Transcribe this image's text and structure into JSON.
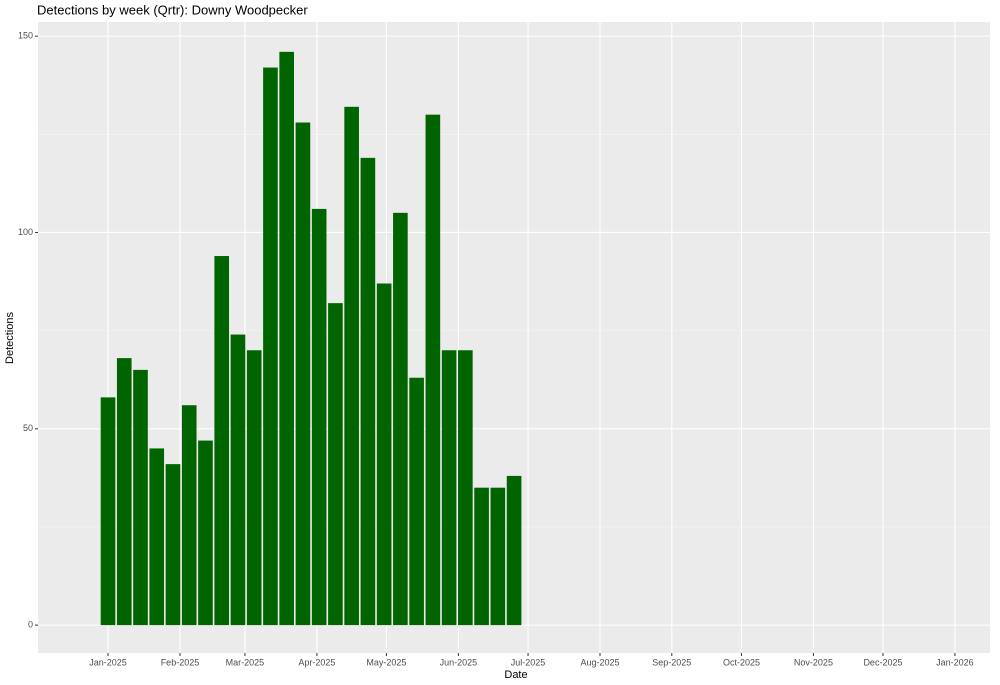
{
  "chart_data": {
    "type": "bar",
    "title": "Detections by week (Qrtr): Downy Woodpecker",
    "x_label": "Date",
    "y_label": "Detections",
    "x": [
      0,
      1,
      2,
      3,
      4,
      5,
      6,
      7,
      8,
      9,
      10,
      11,
      12,
      13,
      14,
      15,
      16,
      17,
      18,
      19,
      20,
      21,
      22,
      23,
      24,
      25
    ],
    "values": [
      58,
      68,
      65,
      45,
      41,
      56,
      47,
      94,
      74,
      70,
      142,
      146,
      128,
      106,
      82,
      132,
      119,
      87,
      105,
      63,
      130,
      70,
      70,
      35,
      35,
      38
    ],
    "color": "#006400",
    "xlim": [
      -4.31,
      54.3
    ],
    "xticks": [
      {
        "value": 0,
        "label": "Jan-2025"
      },
      {
        "value": 4.43,
        "label": "Feb-2025"
      },
      {
        "value": 8.43,
        "label": "Mar-2025"
      },
      {
        "value": 12.86,
        "label": "Apr-2025"
      },
      {
        "value": 17.14,
        "label": "May-2025"
      },
      {
        "value": 21.57,
        "label": "Jun-2025"
      },
      {
        "value": 25.86,
        "label": "Jul-2025"
      },
      {
        "value": 30.29,
        "label": "Aug-2025"
      },
      {
        "value": 34.71,
        "label": "Sep-2025"
      },
      {
        "value": 39,
        "label": "Oct-2025"
      },
      {
        "value": 43.43,
        "label": "Nov-2025"
      },
      {
        "value": 47.71,
        "label": "Dec-2025"
      },
      {
        "value": 52.14,
        "label": "Jan-2026"
      }
    ],
    "ylim": [
      -7.1,
      153.6
    ],
    "yticks": [
      0,
      50,
      100,
      150
    ],
    "grid": true
  }
}
